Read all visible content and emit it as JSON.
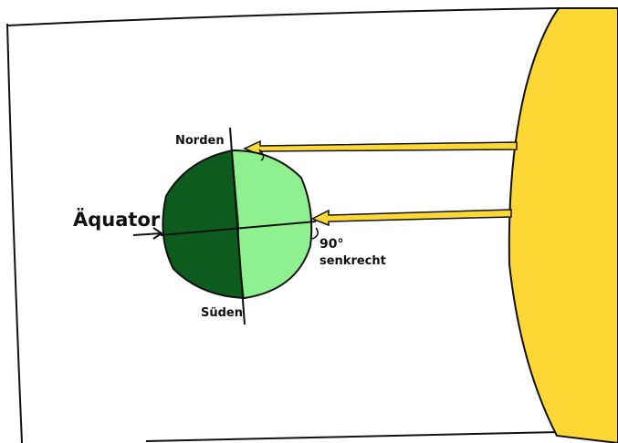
{
  "labels": {
    "north": "Norden",
    "equator": "Äquator",
    "angle": "90°",
    "angle_note": "senkrecht",
    "south": "Süden"
  }
}
